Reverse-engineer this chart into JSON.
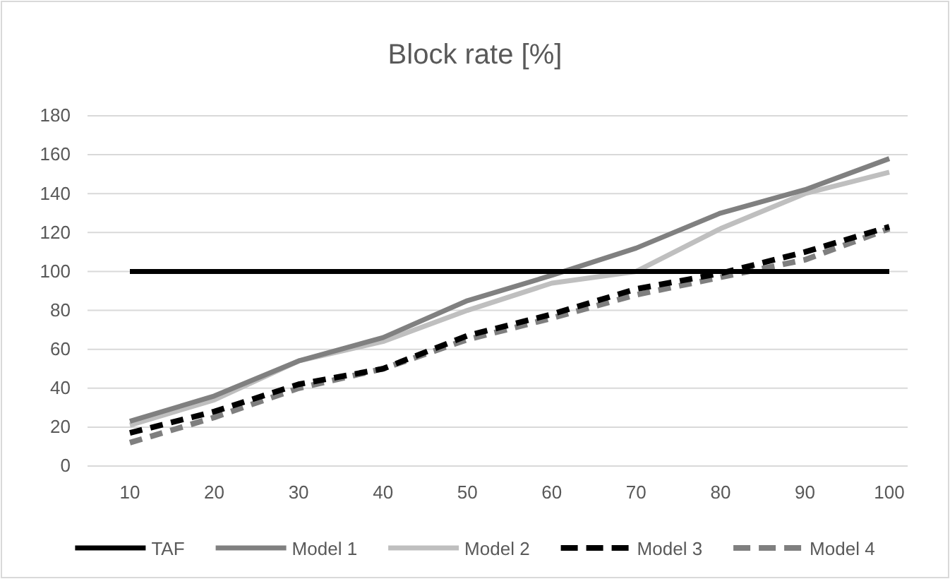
{
  "chart_data": {
    "type": "line",
    "title": "Block rate [%]",
    "categories": [
      "10",
      "20",
      "30",
      "40",
      "50",
      "60",
      "70",
      "80",
      "90",
      "100"
    ],
    "series": [
      {
        "name": "TAF",
        "color": "#000000",
        "values": [
          100,
          100,
          100,
          100,
          100,
          100,
          100,
          100,
          100,
          100
        ]
      },
      {
        "name": "Model 1",
        "color": "#808080",
        "values": [
          23,
          36,
          54,
          66,
          85,
          98,
          112,
          130,
          142,
          158
        ]
      },
      {
        "name": "Model 2",
        "color": "#bfbfbf",
        "values": [
          21,
          34,
          54,
          64,
          80,
          94,
          100,
          122,
          140,
          151
        ]
      },
      {
        "name": "Model 3",
        "color": "#000000",
        "line_style": "dashed",
        "values": [
          17,
          28,
          42,
          50,
          67,
          78,
          91,
          99,
          110,
          123
        ]
      },
      {
        "name": "Model 4",
        "color": "#7f7f7f",
        "line_style": "dashed",
        "values": [
          12,
          25,
          40,
          50,
          65,
          76,
          88,
          97,
          106,
          122
        ]
      }
    ],
    "ylim": [
      0,
      180
    ],
    "yticks": [
      0,
      20,
      40,
      60,
      80,
      100,
      120,
      140,
      160,
      180
    ],
    "grid": "y",
    "legend": "bottom",
    "marker": "none",
    "line_style": "solid"
  }
}
